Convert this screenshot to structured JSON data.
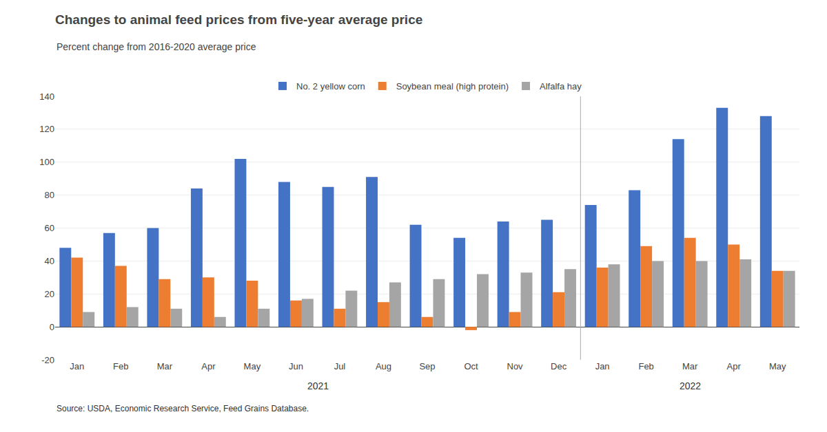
{
  "chart_data": {
    "type": "bar",
    "title": "Changes to animal feed prices from five-year average price",
    "subtitle": "Percent change from 2016-2020 average price",
    "source": "Source: USDA, Economic Research Service, Feed Grains Database.",
    "categories": [
      "Jan",
      "Feb",
      "Mar",
      "Apr",
      "May",
      "Jun",
      "Jul",
      "Aug",
      "Sep",
      "Oct",
      "Nov",
      "Dec",
      "Jan",
      "Feb",
      "Mar",
      "Apr",
      "May"
    ],
    "series": [
      {
        "name": "No. 2 yellow corn",
        "color": "#4472C4",
        "values": [
          48,
          57,
          60,
          84,
          102,
          88,
          85,
          91,
          62,
          54,
          64,
          65,
          74,
          83,
          114,
          133,
          128
        ]
      },
      {
        "name": "Soybean meal (high protein)",
        "color": "#ED7D31",
        "values": [
          42,
          37,
          29,
          30,
          28,
          16,
          11,
          15,
          6,
          -2,
          9,
          21,
          36,
          49,
          54,
          50,
          34
        ]
      },
      {
        "name": "Alfalfa hay",
        "color": "#A5A5A5",
        "values": [
          9,
          12,
          11,
          6,
          11,
          17,
          22,
          27,
          29,
          32,
          33,
          35,
          38,
          40,
          40,
          41,
          34
        ]
      }
    ],
    "annotations": [
      {
        "text": "2021",
        "from": 0,
        "to": 11
      },
      {
        "text": "2022",
        "from": 12,
        "to": 16
      }
    ],
    "ylim": [
      -20,
      140
    ],
    "yticks": [
      -20,
      0,
      20,
      40,
      60,
      80,
      100,
      120,
      140
    ],
    "grid": true,
    "legend": "top"
  }
}
